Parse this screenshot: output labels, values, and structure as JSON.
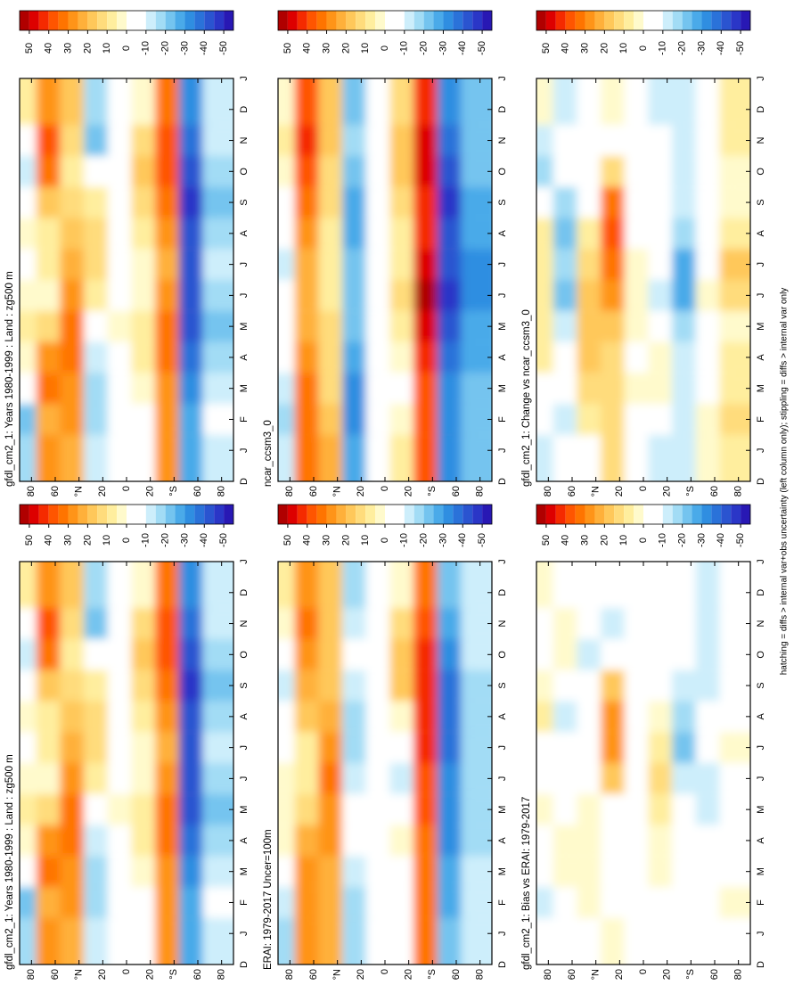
{
  "colorbar": {
    "clim": [
      55,
      -55
    ],
    "ticks": [
      50,
      40,
      30,
      20,
      10,
      0,
      -10,
      -20,
      -30,
      -40,
      -50
    ],
    "colors": [
      "#b00000",
      "#dd0000",
      "#f52a00",
      "#ff5500",
      "#ff7400",
      "#ff9418",
      "#ffb03a",
      "#ffc85a",
      "#ffdc7c",
      "#ffee9e",
      "#fffacc",
      "#ffffff",
      "#ffffff",
      "#cdeefb",
      "#a2dcf5",
      "#74c4ef",
      "#4aaae9",
      "#2f8ee1",
      "#2a72d9",
      "#2a54d0",
      "#2a36c7",
      "#2818b4"
    ]
  },
  "note": "hatching = diffs > internal var+obs uncertainty (left column only); stippling = diffs > internal var only",
  "chart_data": [
    {
      "type": "heatmap",
      "title": "gfdl_cm2_1: Years 1980-1999 : Land : zg500 m",
      "xticks": [
        "D",
        "J",
        "F",
        "M",
        "A",
        "M",
        "J",
        "J",
        "A",
        "S",
        "O",
        "N",
        "D",
        "J"
      ],
      "ylim": [
        90,
        -90
      ],
      "yticks": [
        80,
        60,
        {
          "value": 40,
          "label": "°N"
        },
        20,
        0,
        {
          "value": -20,
          "label": "20"
        },
        {
          "value": -40,
          "label": "°S"
        },
        {
          "value": -60,
          "label": "60"
        },
        {
          "value": -80,
          "label": "80"
        }
      ],
      "y": [
        80,
        60,
        40,
        20,
        0,
        -20,
        -40,
        -60,
        -80
      ],
      "z": [
        [
          -15,
          -20,
          -5,
          5,
          10,
          5,
          0,
          5,
          -5,
          -10,
          0,
          10
        ],
        [
          30,
          25,
          35,
          30,
          15,
          5,
          10,
          10,
          20,
          35,
          40,
          30
        ],
        [
          25,
          30,
          30,
          35,
          35,
          30,
          25,
          20,
          15,
          10,
          15,
          20
        ],
        [
          -10,
          -15,
          -15,
          -10,
          0,
          10,
          15,
          15,
          10,
          -5,
          -20,
          -15
        ],
        [
          0,
          0,
          0,
          0,
          5,
          0,
          0,
          0,
          0,
          0,
          0,
          0
        ],
        [
          0,
          0,
          5,
          10,
          10,
          5,
          5,
          10,
          15,
          20,
          15,
          5
        ],
        [
          30,
          30,
          30,
          35,
          35,
          30,
          25,
          30,
          35,
          40,
          40,
          35
        ],
        [
          -25,
          -25,
          -30,
          -35,
          -40,
          -40,
          -40,
          -40,
          -45,
          -40,
          -35,
          -30
        ],
        [
          -10,
          -5,
          -10,
          -15,
          -20,
          -15,
          -10,
          -15,
          -20,
          -15,
          -10,
          -10
        ]
      ]
    },
    {
      "type": "heatmap",
      "title": "ERAI: 1979-2017 Uncer=100m",
      "xticks": [
        "D",
        "J",
        "F",
        "M",
        "A",
        "M",
        "J",
        "J",
        "A",
        "S",
        "O",
        "N",
        "D",
        "J"
      ],
      "ylim": [
        90,
        -90
      ],
      "yticks": [
        80,
        60,
        {
          "value": 40,
          "label": "°N"
        },
        20,
        0,
        {
          "value": -20,
          "label": "20"
        },
        {
          "value": -40,
          "label": "°S"
        },
        {
          "value": -60,
          "label": "60"
        },
        {
          "value": -80,
          "label": "80"
        }
      ],
      "y": [
        80,
        60,
        40,
        20,
        0,
        -20,
        -40,
        -60,
        -80
      ],
      "z": [
        [
          -15,
          -10,
          0,
          5,
          5,
          5,
          0,
          -5,
          -10,
          -5,
          5,
          10
        ],
        [
          30,
          30,
          30,
          25,
          15,
          10,
          10,
          20,
          25,
          30,
          35,
          30
        ],
        [
          25,
          25,
          25,
          30,
          30,
          35,
          30,
          25,
          20,
          20,
          20,
          20
        ],
        [
          -15,
          -15,
          -10,
          -5,
          0,
          -10,
          -15,
          -15,
          -10,
          -5,
          -10,
          -15
        ],
        [
          0,
          0,
          0,
          0,
          0,
          0,
          0,
          0,
          0,
          0,
          0,
          0
        ],
        [
          0,
          0,
          0,
          5,
          0,
          -10,
          -5,
          5,
          20,
          20,
          15,
          5
        ],
        [
          35,
          35,
          35,
          35,
          40,
          40,
          45,
          45,
          45,
          45,
          40,
          35
        ],
        [
          -20,
          -25,
          -25,
          -30,
          -30,
          -30,
          -35,
          -35,
          -35,
          -30,
          -25,
          -20
        ],
        [
          -10,
          -10,
          -10,
          -15,
          -15,
          -15,
          -15,
          -15,
          -15,
          -10,
          -10,
          -10
        ]
      ]
    },
    {
      "type": "heatmap",
      "title": "gfdl_cm2_1: Bias vs ERAI: 1979-2017",
      "xticks": [
        "D",
        "J",
        "F",
        "M",
        "A",
        "M",
        "J",
        "J",
        "A",
        "S",
        "O",
        "N",
        "D",
        "J"
      ],
      "ylim": [
        90,
        -90
      ],
      "yticks": [
        80,
        60,
        {
          "value": 40,
          "label": "°N"
        },
        20,
        0,
        {
          "value": -20,
          "label": "20"
        },
        {
          "value": -40,
          "label": "°S"
        },
        {
          "value": -60,
          "label": "60"
        },
        {
          "value": -80,
          "label": "80"
        }
      ],
      "y": [
        80,
        60,
        40,
        20,
        0,
        -20,
        -40,
        -60,
        -80
      ],
      "z": [
        [
          0,
          -10,
          -5,
          0,
          5,
          0,
          0,
          10,
          5,
          -5,
          -5,
          5
        ],
        [
          0,
          -5,
          5,
          5,
          0,
          -5,
          0,
          -10,
          -5,
          5,
          5,
          0
        ],
        [
          0,
          5,
          5,
          5,
          5,
          -5,
          -5,
          -5,
          -5,
          -10,
          -5,
          0
        ],
        [
          5,
          0,
          -5,
          -5,
          0,
          20,
          30,
          30,
          20,
          0,
          -10,
          0
        ],
        [
          0,
          0,
          0,
          0,
          0,
          0,
          0,
          0,
          0,
          0,
          0,
          0
        ],
        [
          0,
          0,
          5,
          5,
          10,
          15,
          10,
          5,
          -5,
          0,
          0,
          0
        ],
        [
          -5,
          -5,
          -5,
          0,
          -5,
          -10,
          -20,
          -15,
          -10,
          -5,
          0,
          0
        ],
        [
          -5,
          0,
          -5,
          -5,
          -10,
          -10,
          -5,
          -5,
          -10,
          -10,
          -10,
          -10
        ],
        [
          0,
          5,
          0,
          0,
          -5,
          0,
          5,
          0,
          -5,
          -5,
          0,
          0
        ]
      ]
    },
    {
      "type": "heatmap",
      "title": "gfdl_cm2_1: Years 1980-1999 : Land : zg500 m",
      "xticks": [
        "D",
        "J",
        "F",
        "M",
        "A",
        "M",
        "J",
        "J",
        "A",
        "S",
        "O",
        "N",
        "D",
        "J"
      ],
      "ylim": [
        90,
        -90
      ],
      "yticks": [
        80,
        60,
        {
          "value": 40,
          "label": "°N"
        },
        20,
        0,
        {
          "value": -20,
          "label": "20"
        },
        {
          "value": -40,
          "label": "°S"
        },
        {
          "value": -60,
          "label": "60"
        },
        {
          "value": -80,
          "label": "80"
        }
      ],
      "y": [
        80,
        60,
        40,
        20,
        0,
        -20,
        -40,
        -60,
        -80
      ],
      "z": [
        [
          -15,
          -20,
          -5,
          5,
          10,
          5,
          0,
          5,
          -5,
          -10,
          0,
          10
        ],
        [
          30,
          25,
          35,
          30,
          15,
          5,
          10,
          10,
          20,
          35,
          40,
          30
        ],
        [
          25,
          30,
          30,
          35,
          35,
          30,
          25,
          20,
          15,
          10,
          15,
          20
        ],
        [
          -10,
          -15,
          -15,
          -10,
          0,
          10,
          15,
          15,
          10,
          -5,
          -20,
          -15
        ],
        [
          0,
          0,
          0,
          0,
          5,
          0,
          0,
          0,
          0,
          0,
          0,
          0
        ],
        [
          0,
          0,
          5,
          10,
          10,
          5,
          5,
          10,
          15,
          20,
          15,
          5
        ],
        [
          30,
          30,
          30,
          35,
          35,
          30,
          25,
          30,
          35,
          40,
          40,
          35
        ],
        [
          -25,
          -25,
          -30,
          -35,
          -40,
          -40,
          -40,
          -40,
          -45,
          -40,
          -35,
          -30
        ],
        [
          -10,
          -5,
          -10,
          -15,
          -20,
          -15,
          -10,
          -15,
          -20,
          -15,
          -10,
          -10
        ]
      ]
    },
    {
      "type": "heatmap",
      "title": "ncar_ccsm3_0",
      "xticks": [
        "D",
        "J",
        "F",
        "M",
        "A",
        "M",
        "J",
        "J",
        "A",
        "S",
        "O",
        "N",
        "D",
        "J"
      ],
      "ylim": [
        90,
        -90
      ],
      "yticks": [
        80,
        60,
        {
          "value": 40,
          "label": "°N"
        },
        20,
        0,
        {
          "value": -20,
          "label": "20"
        },
        {
          "value": -40,
          "label": "°S"
        },
        {
          "value": -60,
          "label": "60"
        },
        {
          "value": -80,
          "label": "80"
        }
      ],
      "y": [
        80,
        60,
        40,
        20,
        0,
        -20,
        -40,
        -60,
        -80
      ],
      "z": [
        [
          -10,
          -15,
          -10,
          -5,
          0,
          -5,
          -10,
          -5,
          0,
          5,
          10,
          5
        ],
        [
          35,
          35,
          35,
          30,
          25,
          25,
          25,
          30,
          35,
          40,
          45,
          40
        ],
        [
          25,
          20,
          15,
          15,
          15,
          10,
          10,
          10,
          15,
          15,
          20,
          20
        ],
        [
          -25,
          -30,
          -30,
          -25,
          -20,
          -20,
          -20,
          -25,
          -25,
          -20,
          -15,
          -20
        ],
        [
          0,
          0,
          0,
          0,
          0,
          -5,
          -5,
          0,
          0,
          0,
          0,
          0
        ],
        [
          10,
          5,
          0,
          5,
          10,
          15,
          10,
          10,
          15,
          20,
          20,
          15
        ],
        [
          40,
          40,
          40,
          45,
          50,
          55,
          50,
          45,
          45,
          50,
          50,
          45
        ],
        [
          -30,
          -30,
          -30,
          -35,
          -40,
          -45,
          -40,
          -40,
          -45,
          -40,
          -35,
          -30
        ],
        [
          -20,
          -20,
          -20,
          -25,
          -25,
          -30,
          -30,
          -25,
          -25,
          -20,
          -20,
          -20
        ]
      ]
    },
    {
      "type": "heatmap",
      "title": "gfdl_cm2_1: Change vs ncar_ccsm3_0",
      "xticks": [
        "D",
        "J",
        "F",
        "M",
        "A",
        "M",
        "J",
        "J",
        "A",
        "S",
        "O",
        "N",
        "D",
        "J"
      ],
      "ylim": [
        90,
        -90
      ],
      "yticks": [
        80,
        60,
        {
          "value": 40,
          "label": "°N"
        },
        20,
        0,
        {
          "value": -20,
          "label": "20"
        },
        {
          "value": -40,
          "label": "°S"
        },
        {
          "value": -60,
          "label": "60"
        },
        {
          "value": -80,
          "label": "80"
        }
      ],
      "y": [
        80,
        60,
        40,
        20,
        0,
        -20,
        -40,
        -60,
        -80
      ],
      "z": [
        [
          -10,
          -5,
          0,
          10,
          10,
          10,
          10,
          10,
          -5,
          -15,
          -10,
          5
        ],
        [
          -5,
          -10,
          0,
          0,
          -10,
          -20,
          -15,
          -20,
          -15,
          -5,
          -5,
          -10
        ],
        [
          0,
          10,
          15,
          20,
          20,
          20,
          15,
          10,
          0,
          -5,
          -5,
          0
        ],
        [
          15,
          15,
          15,
          15,
          20,
          30,
          35,
          40,
          35,
          15,
          -5,
          5
        ],
        [
          0,
          0,
          5,
          0,
          5,
          5,
          5,
          0,
          0,
          0,
          0,
          0
        ],
        [
          -10,
          -5,
          5,
          5,
          0,
          -10,
          -5,
          0,
          0,
          0,
          -5,
          -10
        ],
        [
          -10,
          -10,
          -10,
          -10,
          -15,
          -25,
          -25,
          -15,
          -10,
          -10,
          -10,
          -10
        ],
        [
          5,
          5,
          0,
          0,
          0,
          5,
          0,
          0,
          0,
          0,
          0,
          0
        ],
        [
          10,
          15,
          10,
          10,
          5,
          15,
          20,
          10,
          5,
          5,
          10,
          10
        ]
      ]
    }
  ]
}
